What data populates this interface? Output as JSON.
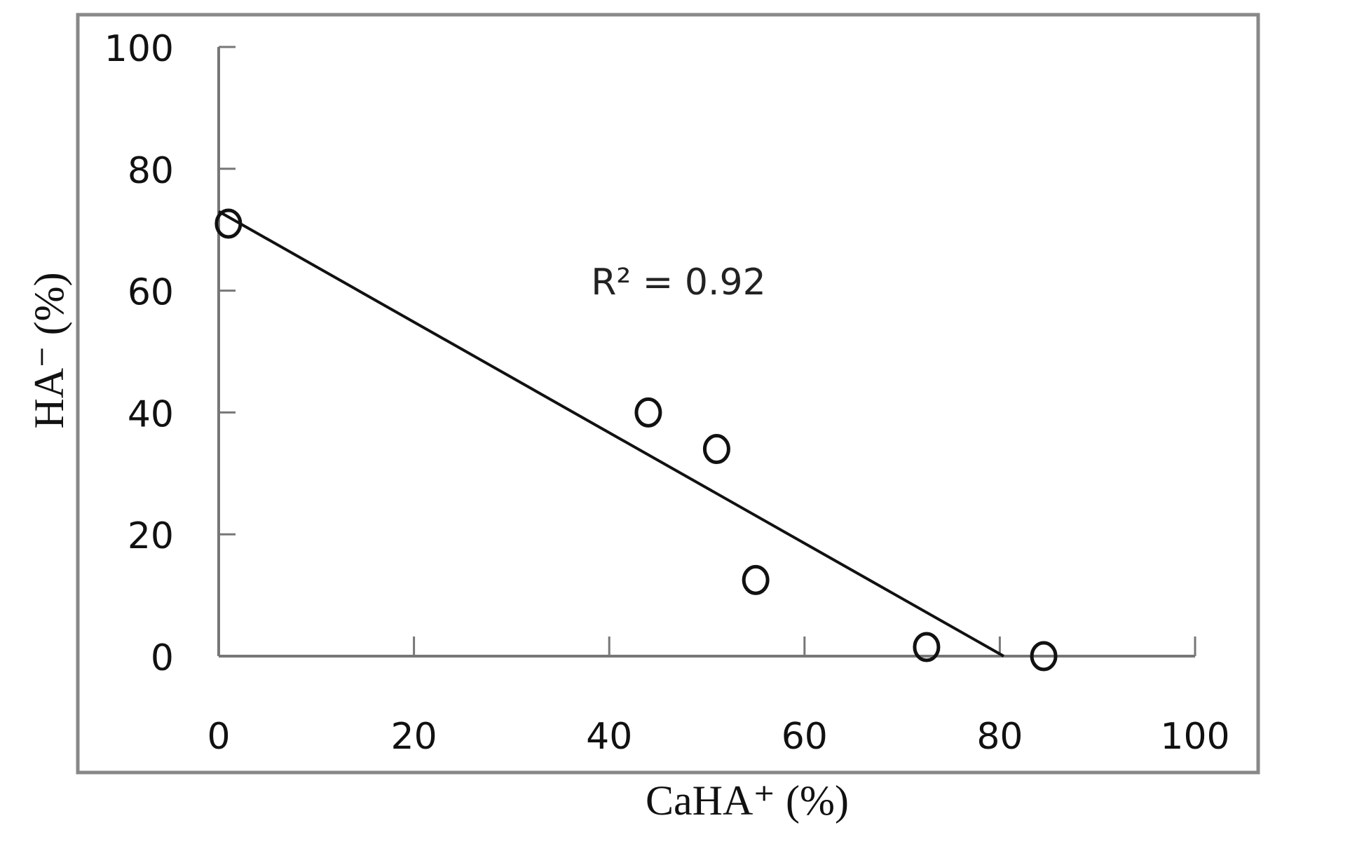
{
  "chart_data": {
    "type": "scatter",
    "title": "",
    "xlabel": "CaHA⁺ (%)",
    "ylabel": "HA⁻ (%)",
    "xlim": [
      0,
      100
    ],
    "ylim": [
      0,
      100
    ],
    "xticks": [
      "0",
      "20",
      "40",
      "60",
      "80",
      "100"
    ],
    "yticks": [
      "0",
      "20",
      "40",
      "60",
      "80",
      "100"
    ],
    "grid": false,
    "points": [
      {
        "x": 1,
        "y": 71
      },
      {
        "x": 44,
        "y": 40
      },
      {
        "x": 51,
        "y": 34
      },
      {
        "x": 55,
        "y": 12.5
      },
      {
        "x": 72.5,
        "y": 1.5
      },
      {
        "x": 84.5,
        "y": 0
      }
    ],
    "fit_line": {
      "x": [
        0,
        80.4
      ],
      "y": [
        73,
        0
      ]
    },
    "annotation": "R² = 0.92",
    "marker": "open-circle",
    "color": "#111111"
  }
}
